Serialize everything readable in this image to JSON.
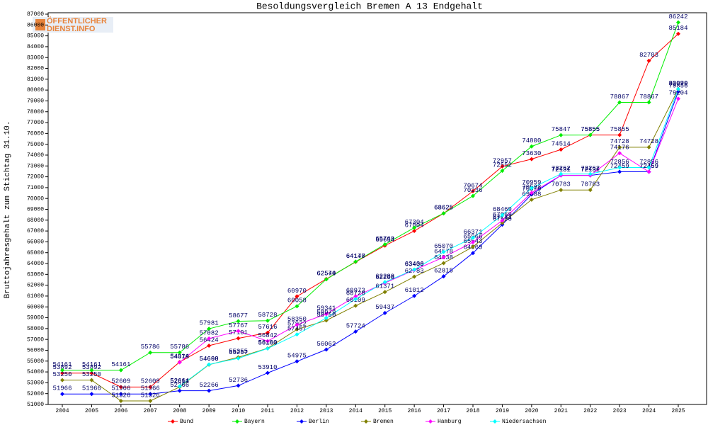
{
  "logo": {
    "line1": "ÖFFENTLICHER",
    "line2": "DIENST.INFO"
  },
  "chart_data": {
    "type": "line",
    "title": "Besoldungsvergleich Bremen A 13 Endgehalt",
    "y_label": "Bruttojahresgehalt zum Stichtag 31.10.",
    "categories": [
      "2004",
      "2005",
      "2006",
      "2007",
      "2008",
      "2009",
      "2010",
      "2011",
      "2012",
      "2013",
      "2014",
      "2015",
      "2016",
      "2017",
      "2018",
      "2019",
      "2020",
      "2021",
      "2022",
      "2023",
      "2024",
      "2025"
    ],
    "ylim": [
      51000,
      87000
    ],
    "yticks": [
      51000,
      52000,
      53000,
      54000,
      55000,
      56000,
      57000,
      58000,
      59000,
      60000,
      61000,
      62000,
      63000,
      64000,
      65000,
      66000,
      67000,
      68000,
      69000,
      70000,
      71000,
      72000,
      73000,
      74000,
      75000,
      76000,
      77000,
      78000,
      79000,
      80000,
      81000,
      82000,
      83000,
      84000,
      85000,
      86000,
      87000
    ],
    "series": [
      {
        "name": "Bund",
        "color": "#ff0000",
        "values": [
          53892,
          53892,
          52609,
          52609,
          54914,
          56424,
          57101,
          57616,
          60970,
          62570,
          64147,
          65654,
          67004,
          68625,
          70674,
          72957,
          73630,
          74514,
          75855,
          75855,
          82703,
          85184
        ]
      },
      {
        "name": "Bayern",
        "color": "#00ee00",
        "values": [
          54161,
          54161,
          54161,
          55786,
          55786,
          57981,
          58677,
          58728,
          60058,
          62544,
          64170,
          65769,
          67304,
          68625,
          70236,
          72552,
          74800,
          75847,
          75855,
          78867,
          78867,
          86242
        ]
      },
      {
        "name": "Berlin",
        "color": "#0000ff",
        "values": [
          51966,
          51966,
          51966,
          51966,
          52266,
          52266,
          52736,
          53910,
          54975,
          56062,
          57724,
          59437,
          61012,
          62815,
          64969,
          67588,
          70370,
          72131,
          72131,
          72459,
          72459,
          79856
        ]
      },
      {
        "name": "Bremen",
        "color": "#808000",
        "values": [
          53250,
          53250,
          51326,
          51326,
          52611,
          54668,
          55355,
          56180,
          57922,
          58750,
          60109,
          61371,
          62783,
          64038,
          65543,
          67741,
          69888,
          70783,
          70783,
          74728,
          74728,
          80079
        ]
      },
      {
        "name": "Hamburg",
        "color": "#ff00ff",
        "values": [
          null,
          null,
          null,
          null,
          54878,
          57082,
          57767,
          56842,
          58350,
          59341,
          60973,
          62208,
          63400,
          64578,
          65966,
          67969,
          70522,
          72131,
          72131,
          74176,
          72459,
          79204
        ]
      },
      {
        "name": "Niedersachsen",
        "color": "#00ffff",
        "values": [
          null,
          null,
          null,
          null,
          52664,
          54690,
          55257,
          56160,
          57457,
          58979,
          60720,
          62288,
          63436,
          65070,
          66371,
          68469,
          70959,
          72262,
          72262,
          72856,
          72856,
          80090
        ]
      }
    ]
  }
}
